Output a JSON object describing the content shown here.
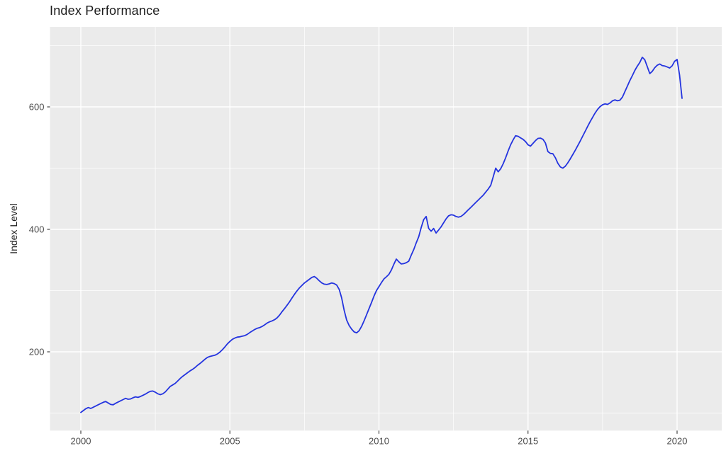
{
  "title": "Index Performance",
  "chart_data": {
    "type": "line",
    "title": "Index Performance",
    "xlabel": "",
    "ylabel": "Index Level",
    "legend_position": "none",
    "grid": "major-and-minor-white-on-grey-panel",
    "panel_bg": "#EBEBEB",
    "grid_color": "#FFFFFF",
    "line_color": "#2434DF",
    "tick_label_color": "#4d4d4d",
    "tick_mark_color": "#333333",
    "x_ticks": [
      2000,
      2005,
      2010,
      2015,
      2020
    ],
    "x_minor_ticks": [
      2002.5,
      2007.5,
      2012.5,
      2017.5
    ],
    "y_ticks": [
      200,
      400,
      600
    ],
    "y_minor_ticks": [
      100,
      300,
      500,
      700
    ],
    "x_range": [
      1999.2,
      2021.0
    ],
    "y_range": [
      72,
      730
    ],
    "x_start_year": 2000,
    "points_per_year": 12,
    "x_end_year": 2020.167,
    "values": [
      101,
      104,
      107,
      109,
      107.5,
      109.5,
      111.5,
      113.5,
      115.5,
      117.5,
      119,
      116.5,
      114,
      113.5,
      116,
      118,
      120,
      122,
      124,
      122.5,
      123,
      125,
      126.5,
      125.5,
      127,
      129,
      131,
      133.5,
      135.5,
      136,
      134,
      131.5,
      130,
      131.5,
      134.5,
      139,
      143.5,
      146,
      148.5,
      152.5,
      156.5,
      160,
      163,
      166,
      169,
      171.5,
      174.5,
      178,
      181,
      184.5,
      188,
      191,
      192.5,
      193.5,
      194.5,
      196.5,
      199.5,
      203.5,
      208,
      213,
      217,
      220.5,
      222.5,
      224,
      224.5,
      225.5,
      226.5,
      228.5,
      231.5,
      234,
      236.5,
      238.5,
      239.5,
      241.5,
      244,
      247,
      249,
      250.5,
      252.5,
      255.5,
      260,
      265.5,
      270.5,
      276,
      281.5,
      288,
      294,
      299.5,
      304.5,
      308.5,
      312.5,
      315.5,
      318.5,
      321.5,
      323,
      320,
      316,
      312.5,
      310.5,
      310,
      311,
      312.5,
      311.5,
      309,
      302,
      288,
      268,
      252,
      243,
      237,
      232.5,
      231,
      234.5,
      241.5,
      250.5,
      260.5,
      270.5,
      280.5,
      291,
      300,
      306.5,
      313,
      319,
      322.5,
      326.5,
      333.5,
      343,
      351.5,
      347,
      343.5,
      344,
      345.5,
      348,
      358,
      367,
      378,
      388,
      403,
      416,
      421,
      401.5,
      397,
      401.5,
      394,
      399,
      404,
      410.5,
      417,
      422,
      423.8,
      423.2,
      421,
      420,
      421,
      424,
      428,
      432,
      436,
      440,
      444,
      448,
      452,
      456,
      461,
      466,
      472,
      486,
      500,
      494,
      499,
      507,
      517,
      528,
      538,
      546,
      553,
      552,
      549.5,
      547,
      543.5,
      538,
      536,
      540.5,
      545,
      548.5,
      549,
      547,
      541,
      527,
      524,
      523.5,
      517,
      508,
      502,
      500,
      503,
      508.5,
      515,
      522,
      529,
      536.5,
      544,
      552,
      560,
      568,
      576,
      583,
      590,
      596,
      600.5,
      603.5,
      605,
      604,
      606.5,
      610,
      611.5,
      610,
      611,
      616,
      625,
      634,
      643,
      651,
      659.5,
      666.5,
      672.5,
      681,
      677,
      666,
      654.5,
      658,
      664,
      668,
      670,
      667.5,
      666.8,
      665.2,
      663.5,
      667,
      674.5,
      677.5,
      652,
      614
    ]
  }
}
